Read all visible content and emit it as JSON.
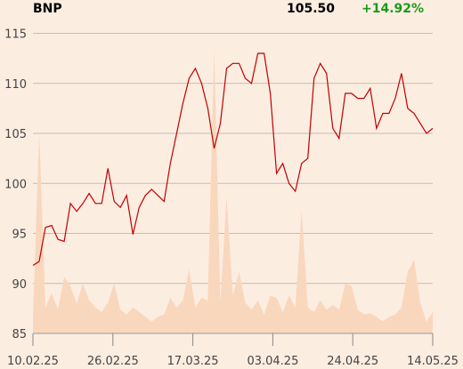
{
  "header": {
    "ticker": "BNP",
    "price": "105.50",
    "change": "+14.92%",
    "change_color": "#1a9a1a"
  },
  "chart_data": {
    "type": "line",
    "ylim": [
      85,
      116
    ],
    "yticks": [
      85,
      90,
      95,
      100,
      105,
      110,
      115
    ],
    "xtick_labels": [
      "10.02.25",
      "26.02.25",
      "17.03.25",
      "03.04.25",
      "24.04.25",
      "14.05.25"
    ],
    "line_color": "#c00000",
    "volume_color": "#f9d7bd",
    "grid": true,
    "series": [
      {
        "values": [
          91.8,
          92.2,
          95.6,
          95.8,
          94.4,
          94.2,
          98.0,
          97.2,
          98.0,
          99.0,
          98.0,
          98.0,
          101.5,
          98.2,
          97.6,
          98.8,
          94.9,
          97.6,
          98.8,
          99.4,
          98.8,
          98.2,
          102.0,
          105.0,
          108.0,
          110.5,
          111.5,
          110.0,
          107.5,
          103.5,
          106.0,
          111.5,
          112.0,
          112.0,
          110.5,
          110.0,
          113.0,
          113.0,
          109.0,
          101.0,
          102.0,
          100.0,
          99.2,
          102.0,
          102.5,
          110.5,
          112.0,
          111.0,
          105.5,
          104.5,
          109.0,
          109.0,
          108.5,
          108.5,
          109.5,
          105.5,
          107.0,
          107.0,
          108.5,
          111.0,
          107.5,
          107.0,
          106.0,
          105.0,
          105.5
        ]
      }
    ],
    "volume": [
      13,
      170,
      22,
      34,
      20,
      48,
      40,
      25,
      42,
      28,
      22,
      18,
      26,
      42,
      20,
      16,
      22,
      18,
      14,
      10,
      14,
      16,
      30,
      22,
      28,
      54,
      22,
      30,
      28,
      240,
      26,
      115,
      32,
      52,
      26,
      20,
      28,
      16,
      32,
      30,
      18,
      32,
      22,
      104,
      22,
      18,
      28,
      20,
      24,
      20,
      42,
      40,
      20,
      16,
      17,
      14,
      10,
      14,
      16,
      22,
      52,
      62,
      26,
      10,
      18
    ]
  }
}
